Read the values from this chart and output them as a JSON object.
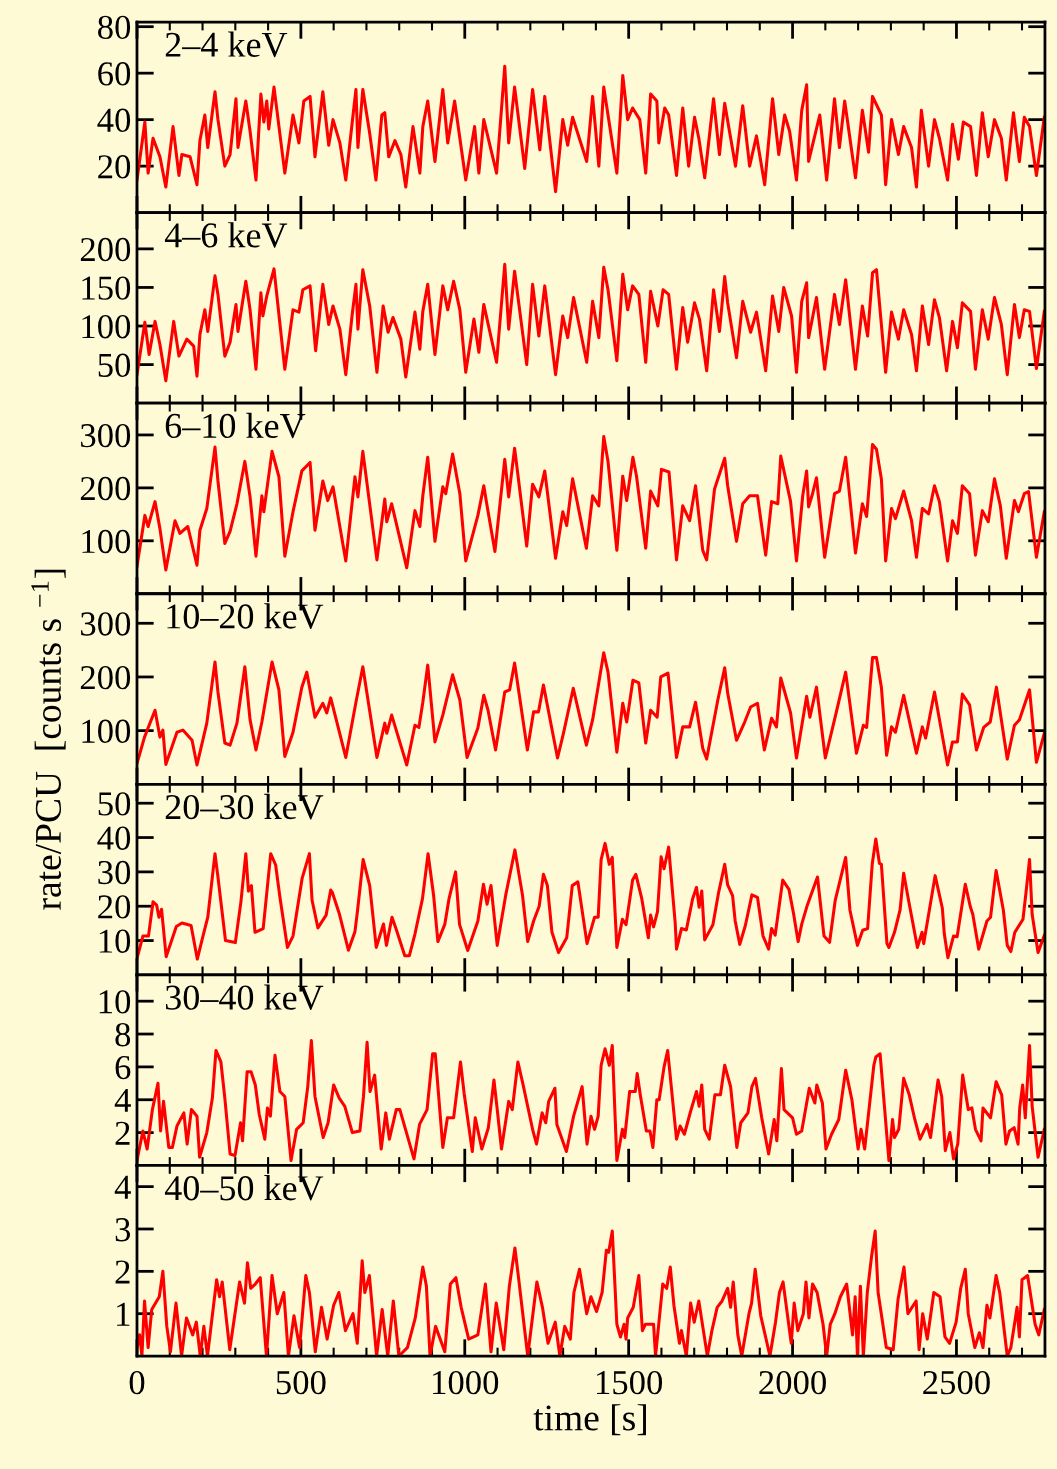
{
  "chart_data": [
    {
      "type": "line",
      "annotations": [
        "2–4 keV"
      ],
      "xlim": [
        0,
        2770
      ],
      "xticks": [
        0,
        500,
        1000,
        1500,
        2000,
        2500
      ],
      "ylim": [
        0,
        82
      ],
      "yticks": [
        20,
        40,
        60,
        80
      ],
      "tick_labels": "y",
      "x": [
        0,
        24,
        34,
        49,
        70,
        88,
        110,
        128,
        137,
        162,
        183,
        192,
        207,
        216,
        238,
        247,
        268,
        284,
        302,
        308,
        332,
        345,
        363,
        378,
        387,
        396,
        402,
        418,
        451,
        476,
        494,
        509,
        528,
        543,
        567,
        585,
        598,
        619,
        637,
        656,
        668,
        674,
        689,
        710,
        729,
        747,
        756,
        768,
        787,
        805,
        820,
        842,
        863,
        872,
        887,
        909,
        933,
        948,
        969,
        1003,
        1030,
        1043,
        1058,
        1097,
        1122,
        1134,
        1152,
        1183,
        1207,
        1229,
        1244,
        1277,
        1299,
        1314,
        1329,
        1372,
        1390,
        1409,
        1424,
        1437,
        1464,
        1482,
        1497,
        1512,
        1534,
        1552,
        1567,
        1586,
        1592,
        1610,
        1622,
        1646,
        1665,
        1683,
        1701,
        1714,
        1732,
        1759,
        1777,
        1793,
        1805,
        1826,
        1848,
        1869,
        1890,
        1915,
        1939,
        1958,
        1976,
        1991,
        2012,
        2028,
        2043,
        2049,
        2083,
        2104,
        2128,
        2143,
        2159,
        2192,
        2213,
        2232,
        2244,
        2271,
        2284,
        2302,
        2323,
        2339,
        2363,
        2378,
        2393,
        2415,
        2433,
        2448,
        2473,
        2488,
        2506,
        2521,
        2543,
        2561,
        2579,
        2597,
        2616,
        2637,
        2652,
        2674,
        2692,
        2707,
        2723,
        2744,
        2768
      ],
      "series": [
        {
          "color": "#ff0000",
          "values": [
            14,
            39,
            17,
            32,
            24,
            11,
            37,
            16,
            25,
            24,
            12,
            31,
            42,
            28,
            52,
            40,
            20,
            25,
            49,
            28,
            48,
            35,
            14,
            51,
            39,
            48,
            36,
            54,
            17,
            42,
            30,
            48,
            50,
            24,
            52,
            29,
            40,
            30,
            14,
            38,
            53,
            28,
            53,
            34,
            14,
            42,
            43,
            24,
            31,
            25,
            11,
            37,
            17,
            37,
            48,
            22,
            53,
            30,
            48,
            14,
            37,
            17,
            40,
            17,
            63,
            30,
            54,
            19,
            53,
            27,
            50,
            9,
            40,
            29,
            41,
            22,
            50,
            20,
            54,
            42,
            17,
            59,
            40,
            45,
            40,
            17,
            51,
            48,
            30,
            45,
            42,
            16,
            45,
            20,
            41,
            32,
            15,
            49,
            25,
            47,
            37,
            20,
            46,
            20,
            33,
            12,
            49,
            25,
            42,
            35,
            14,
            44,
            55,
            22,
            42,
            14,
            49,
            28,
            48,
            15,
            44,
            26,
            50,
            42,
            12,
            40,
            25,
            37,
            28,
            11,
            44,
            20,
            40,
            32,
            14,
            38,
            23,
            39,
            37,
            16,
            43,
            24,
            40,
            32,
            14,
            43,
            22,
            41,
            37,
            16,
            41
          ]
        }
      ]
    },
    {
      "type": "line",
      "annotations": [
        "4–6 keV"
      ],
      "xlim": [
        0,
        2770
      ],
      "xticks": [
        0,
        500,
        1000,
        1500,
        2000,
        2500
      ],
      "ylim": [
        0,
        247
      ],
      "yticks": [
        50,
        100,
        150,
        200
      ],
      "tick_labels": "y",
      "x": [
        0,
        24,
        37,
        55,
        70,
        88,
        112,
        128,
        152,
        173,
        183,
        192,
        207,
        216,
        238,
        247,
        268,
        284,
        302,
        308,
        332,
        345,
        363,
        378,
        384,
        396,
        418,
        451,
        476,
        494,
        506,
        528,
        545,
        567,
        585,
        598,
        619,
        637,
        656,
        668,
        674,
        689,
        710,
        732,
        751,
        766,
        781,
        805,
        820,
        848,
        863,
        872,
        887,
        909,
        933,
        948,
        966,
        985,
        1003,
        1028,
        1043,
        1058,
        1097,
        1122,
        1134,
        1152,
        1189,
        1207,
        1226,
        1244,
        1277,
        1299,
        1314,
        1332,
        1372,
        1390,
        1409,
        1424,
        1437,
        1464,
        1482,
        1497,
        1512,
        1531,
        1552,
        1567,
        1589,
        1605,
        1622,
        1646,
        1665,
        1680,
        1701,
        1716,
        1738,
        1759,
        1777,
        1793,
        1802,
        1829,
        1848,
        1872,
        1890,
        1918,
        1939,
        1958,
        1973,
        1997,
        2012,
        2028,
        2043,
        2049,
        2073,
        2098,
        2128,
        2143,
        2162,
        2192,
        2213,
        2229,
        2244,
        2256,
        2284,
        2302,
        2323,
        2339,
        2363,
        2378,
        2396,
        2415,
        2433,
        2448,
        2470,
        2488,
        2503,
        2518,
        2543,
        2558,
        2579,
        2597,
        2616,
        2637,
        2655,
        2677,
        2692,
        2707,
        2723,
        2744,
        2768
      ],
      "series": [
        {
          "color": "#ff0000",
          "values": [
            37,
            105,
            63,
            106,
            76,
            29,
            106,
            61,
            83,
            74,
            35,
            89,
            121,
            93,
            165,
            141,
            61,
            79,
            128,
            93,
            158,
            121,
            44,
            143,
            113,
            139,
            174,
            44,
            121,
            118,
            147,
            152,
            68,
            154,
            102,
            126,
            96,
            37,
            113,
            154,
            96,
            173,
            126,
            40,
            126,
            92,
            111,
            83,
            34,
            118,
            70,
            119,
            154,
            63,
            152,
            121,
            158,
            121,
            40,
            109,
            66,
            128,
            53,
            180,
            96,
            171,
            50,
            154,
            87,
            152,
            37,
            113,
            85,
            137,
            53,
            132,
            85,
            176,
            147,
            55,
            167,
            121,
            152,
            141,
            53,
            145,
            100,
            147,
            141,
            44,
            124,
            79,
            130,
            109,
            42,
            147,
            93,
            164,
            130,
            59,
            132,
            92,
            118,
            42,
            139,
            93,
            150,
            113,
            40,
            132,
            156,
            85,
            137,
            44,
            141,
            102,
            160,
            44,
            126,
            87,
            169,
            173,
            40,
            118,
            83,
            121,
            89,
            42,
            126,
            76,
            134,
            111,
            42,
            106,
            72,
            130,
            119,
            44,
            121,
            83,
            137,
            102,
            37,
            128,
            85,
            121,
            119,
            45,
            119
          ]
        }
      ]
    },
    {
      "type": "line",
      "annotations": [
        "6–10 keV"
      ],
      "xlim": [
        0,
        2770
      ],
      "xticks": [
        0,
        500,
        1000,
        1500,
        2000,
        2500
      ],
      "ylim": [
        0,
        360
      ],
      "yticks": [
        100,
        200,
        300
      ],
      "tick_labels": "y",
      "x": [
        0,
        24,
        34,
        55,
        70,
        88,
        116,
        131,
        155,
        183,
        192,
        213,
        238,
        247,
        268,
        284,
        305,
        329,
        345,
        363,
        381,
        387,
        412,
        433,
        451,
        476,
        503,
        528,
        543,
        567,
        582,
        598,
        637,
        665,
        674,
        689,
        732,
        756,
        762,
        777,
        823,
        848,
        863,
        872,
        887,
        909,
        933,
        942,
        963,
        985,
        1003,
        1040,
        1058,
        1067,
        1092,
        1122,
        1134,
        1152,
        1189,
        1207,
        1226,
        1244,
        1277,
        1299,
        1311,
        1329,
        1371,
        1390,
        1409,
        1424,
        1437,
        1464,
        1482,
        1494,
        1513,
        1524,
        1552,
        1567,
        1589,
        1600,
        1623,
        1646,
        1665,
        1686,
        1704,
        1726,
        1738,
        1762,
        1793,
        1802,
        1829,
        1848,
        1869,
        1893,
        1918,
        1936,
        1955,
        1964,
        1994,
        2012,
        2031,
        2043,
        2049,
        2061,
        2073,
        2098,
        2128,
        2143,
        2162,
        2192,
        2213,
        2226,
        2244,
        2256,
        2271,
        2284,
        2302,
        2314,
        2339,
        2363,
        2378,
        2396,
        2415,
        2433,
        2448,
        2473,
        2488,
        2503,
        2518,
        2540,
        2558,
        2579,
        2597,
        2616,
        2634,
        2652,
        2677,
        2689,
        2707,
        2720,
        2744,
        2768
      ],
      "series": [
        {
          "color": "#ff0000",
          "values": [
            52,
            148,
            127,
            174,
            123,
            45,
            138,
            114,
            127,
            54,
            120,
            161,
            277,
            213,
            95,
            118,
            170,
            250,
            183,
            71,
            185,
            155,
            269,
            221,
            71,
            155,
            232,
            248,
            120,
            213,
            176,
            202,
            62,
            221,
            183,
            269,
            64,
            179,
            136,
            170,
            49,
            157,
            127,
            185,
            258,
            99,
            202,
            189,
            264,
            189,
            62,
            148,
            204,
            170,
            80,
            254,
            183,
            275,
            90,
            207,
            183,
            232,
            67,
            155,
            129,
            217,
            86,
            185,
            166,
            297,
            250,
            82,
            222,
            176,
            258,
            222,
            86,
            194,
            166,
            235,
            230,
            64,
            166,
            138,
            204,
            82,
            64,
            198,
            256,
            204,
            99,
            170,
            185,
            185,
            73,
            174,
            170,
            260,
            174,
            62,
            185,
            232,
            164,
            189,
            219,
            69,
            189,
            194,
            258,
            77,
            170,
            146,
            282,
            273,
            217,
            62,
            161,
            142,
            194,
            138,
            69,
            161,
            151,
            204,
            174,
            62,
            138,
            114,
            204,
            189,
            73,
            157,
            136,
            217,
            166,
            67,
            176,
            155,
            189,
            193,
            69,
            155
          ]
        }
      ]
    },
    {
      "type": "line",
      "annotations": [
        "10–20 keV"
      ],
      "ylabel": "rate/PCU  [counts s $^{−1}$]",
      "xlim": [
        0,
        2770
      ],
      "xticks": [
        0,
        500,
        1000,
        1500,
        2000,
        2500
      ],
      "ylim": [
        0,
        355
      ],
      "yticks": [
        100,
        200,
        300
      ],
      "tick_labels": "y",
      "x": [
        0,
        23,
        55,
        70,
        79,
        88,
        122,
        140,
        168,
        183,
        213,
        238,
        247,
        268,
        284,
        305,
        329,
        345,
        363,
        381,
        412,
        433,
        451,
        476,
        503,
        518,
        543,
        567,
        579,
        591,
        637,
        668,
        689,
        732,
        756,
        762,
        777,
        823,
        848,
        860,
        872,
        887,
        909,
        933,
        963,
        985,
        1007,
        1040,
        1058,
        1071,
        1094,
        1122,
        1137,
        1152,
        1191,
        1210,
        1225,
        1240,
        1283,
        1301,
        1331,
        1371,
        1390,
        1424,
        1437,
        1464,
        1482,
        1494,
        1513,
        1531,
        1552,
        1567,
        1587,
        1598,
        1620,
        1646,
        1665,
        1686,
        1704,
        1726,
        1738,
        1772,
        1793,
        1802,
        1829,
        1854,
        1872,
        1893,
        1914,
        1936,
        1951,
        1964,
        1994,
        2012,
        2031,
        2043,
        2053,
        2073,
        2100,
        2133,
        2162,
        2195,
        2216,
        2226,
        2244,
        2256,
        2271,
        2287,
        2302,
        2314,
        2339,
        2378,
        2396,
        2406,
        2433,
        2473,
        2488,
        2503,
        2518,
        2540,
        2561,
        2583,
        2603,
        2622,
        2655,
        2677,
        2692,
        2723,
        2744,
        2768
      ],
      "series": [
        {
          "color": "#ff0000",
          "values": [
            39,
            88,
            138,
            88,
            101,
            37,
            97,
            101,
            82,
            36,
            114,
            228,
            172,
            77,
            73,
            114,
            219,
            120,
            64,
            116,
            228,
            176,
            52,
            97,
            181,
            209,
            125,
            151,
            133,
            161,
            50,
            153,
            219,
            50,
            114,
            95,
            129,
            36,
            110,
            106,
            153,
            222,
            79,
            129,
            204,
            157,
            50,
            105,
            166,
            138,
            64,
            172,
            176,
            226,
            64,
            135,
            135,
            185,
            49,
            95,
            179,
            73,
            120,
            245,
            209,
            60,
            151,
            116,
            194,
            189,
            77,
            138,
            125,
            200,
            207,
            50,
            107,
            107,
            153,
            67,
            47,
            157,
            217,
            170,
            82,
            116,
            144,
            151,
            64,
            123,
            107,
            198,
            133,
            49,
            120,
            164,
            125,
            181,
            49,
            133,
            209,
            58,
            110,
            106,
            236,
            236,
            181,
            54,
            107,
            97,
            166,
            58,
            107,
            86,
            172,
            36,
            79,
            79,
            168,
            148,
            64,
            106,
            116,
            181,
            47,
            110,
            120,
            176,
            41,
            95
          ]
        }
      ]
    },
    {
      "type": "line",
      "annotations": [
        "20–30 keV"
      ],
      "xlim": [
        0,
        2770
      ],
      "xticks": [
        0,
        500,
        1000,
        1500,
        2000,
        2500
      ],
      "ylim": [
        0,
        55.5
      ],
      "yticks": [
        10,
        20,
        30,
        40,
        50
      ],
      "tick_labels": "y",
      "x": [
        0,
        18,
        35,
        49,
        60,
        67,
        75,
        89,
        120,
        137,
        165,
        184,
        199,
        216,
        238,
        247,
        270,
        300,
        317,
        332,
        340,
        349,
        360,
        385,
        408,
        423,
        436,
        459,
        476,
        504,
        526,
        534,
        552,
        577,
        591,
        596,
        617,
        645,
        665,
        673,
        690,
        710,
        730,
        752,
        761,
        778,
        790,
        817,
        831,
        848,
        871,
        888,
        905,
        918,
        939,
        952,
        972,
        984,
        1009,
        1040,
        1057,
        1068,
        1080,
        1099,
        1125,
        1153,
        1176,
        1192,
        1210,
        1227,
        1240,
        1252,
        1266,
        1286,
        1311,
        1328,
        1345,
        1373,
        1396,
        1407,
        1416,
        1428,
        1441,
        1450,
        1464,
        1481,
        1492,
        1512,
        1522,
        1540,
        1560,
        1567,
        1576,
        1588,
        1599,
        1608,
        1622,
        1642,
        1646,
        1661,
        1676,
        1695,
        1707,
        1715,
        1723,
        1732,
        1757,
        1774,
        1793,
        1802,
        1817,
        1825,
        1839,
        1856,
        1876,
        1893,
        1910,
        1927,
        1936,
        1947,
        1970,
        1989,
        2003,
        2017,
        2028,
        2045,
        2076,
        2096,
        2113,
        2130,
        2162,
        2175,
        2198,
        2214,
        2229,
        2243,
        2254,
        2265,
        2271,
        2288,
        2294,
        2311,
        2328,
        2339,
        2353,
        2381,
        2395,
        2400,
        2435,
        2457,
        2463,
        2474,
        2491,
        2502,
        2527,
        2542,
        2550,
        2568,
        2593,
        2604,
        2621,
        2643,
        2655,
        2666,
        2678,
        2703,
        2712,
        2723,
        2731,
        2749,
        2768
      ],
      "series": [
        {
          "color": "#ff0000",
          "values": [
            4.8,
            11.3,
            11.3,
            21.3,
            20.3,
            16.8,
            19.1,
            5.3,
            14.1,
            15.1,
            14.4,
            4.6,
            10.4,
            16.8,
            35.3,
            28.5,
            10.0,
            9.4,
            21.2,
            35.3,
            24.4,
            26.0,
            12.4,
            13.5,
            35.3,
            32.0,
            22.7,
            8.0,
            11.3,
            28.2,
            35.3,
            21.8,
            13.7,
            17.4,
            24.7,
            24.0,
            17.9,
            7.2,
            12.6,
            18.9,
            33.6,
            26.0,
            8.0,
            14.8,
            8.6,
            16.8,
            13.5,
            5.6,
            5.6,
            11.9,
            22.2,
            35.3,
            23.1,
            9.7,
            14.7,
            22.2,
            30.0,
            14.7,
            7.1,
            15.7,
            26.4,
            20.6,
            26.0,
            8.6,
            23.3,
            36.4,
            23.3,
            9.7,
            15.7,
            20.0,
            29.3,
            26.0,
            12.4,
            6.5,
            10.8,
            26.0,
            27.1,
            9.1,
            16.8,
            16.8,
            33.6,
            38.3,
            32.2,
            34.2,
            8.0,
            16.2,
            14.6,
            27.6,
            29.3,
            22.2,
            10.8,
            17.4,
            14.0,
            18.4,
            34.4,
            30.9,
            37.2,
            15.1,
            7.5,
            13.5,
            13.1,
            22.1,
            25.5,
            19.7,
            24.4,
            10.2,
            14.6,
            23.8,
            32.2,
            26.2,
            23.1,
            15.7,
            8.9,
            14.4,
            23.3,
            22.6,
            11.3,
            7.5,
            13.5,
            11.6,
            27.6,
            24.9,
            17.9,
            9.7,
            14.8,
            20.3,
            28.5,
            11.3,
            9.5,
            21.6,
            34.2,
            18.9,
            8.6,
            13.0,
            13.5,
            32.2,
            39.6,
            32.5,
            32.2,
            9.1,
            8.0,
            12.4,
            18.9,
            29.6,
            22.2,
            8.0,
            12.4,
            9.1,
            28.9,
            19.4,
            11.9,
            5.0,
            11.3,
            11.1,
            26.4,
            20.0,
            17.6,
            7.5,
            15.7,
            16.8,
            30.4,
            18.9,
            8.6,
            6.8,
            12.4,
            16.2,
            23.8,
            33.6,
            17.6,
            6.5,
            11.5
          ]
        }
      ]
    },
    {
      "type": "line",
      "annotations": [
        "30–40 keV"
      ],
      "xlim": [
        0,
        2770
      ],
      "xticks": [
        0,
        500,
        1000,
        1500,
        2000,
        2500
      ],
      "ylim": [
        0,
        11.6
      ],
      "yticks": [
        2,
        4,
        6,
        8,
        10
      ],
      "tick_labels": "y",
      "x": [
        0,
        18,
        31,
        47,
        64,
        72,
        81,
        97,
        108,
        122,
        143,
        153,
        166,
        183,
        191,
        213,
        230,
        241,
        256,
        268,
        284,
        299,
        316,
        322,
        336,
        348,
        361,
        373,
        390,
        398,
        407,
        421,
        436,
        451,
        470,
        487,
        507,
        521,
        532,
        543,
        568,
        583,
        600,
        617,
        634,
        657,
        680,
        691,
        702,
        711,
        725,
        745,
        759,
        770,
        791,
        802,
        845,
        862,
        885,
        902,
        910,
        933,
        947,
        966,
        987,
        998,
        1023,
        1032,
        1052,
        1072,
        1089,
        1098,
        1112,
        1134,
        1145,
        1162,
        1177,
        1208,
        1219,
        1236,
        1247,
        1256,
        1275,
        1281,
        1310,
        1332,
        1358,
        1373,
        1385,
        1396,
        1407,
        1416,
        1428,
        1441,
        1450,
        1464,
        1481,
        1488,
        1503,
        1520,
        1526,
        1537,
        1554,
        1565,
        1574,
        1586,
        1593,
        1608,
        1619,
        1646,
        1657,
        1670,
        1689,
        1707,
        1715,
        1723,
        1732,
        1746,
        1763,
        1780,
        1793,
        1811,
        1830,
        1842,
        1864,
        1876,
        1887,
        1906,
        1927,
        1944,
        1952,
        1966,
        1974,
        2000,
        2012,
        2028,
        2051,
        2068,
        2074,
        2091,
        2102,
        2119,
        2141,
        2162,
        2181,
        2200,
        2209,
        2220,
        2248,
        2254,
        2267,
        2294,
        2305,
        2311,
        2324,
        2339,
        2356,
        2373,
        2389,
        2410,
        2421,
        2444,
        2455,
        2466,
        2480,
        2491,
        2504,
        2519,
        2536,
        2547,
        2558,
        2575,
        2581,
        2604,
        2621,
        2638,
        2651,
        2662,
        2676,
        2688,
        2693,
        2702,
        2710,
        2723,
        2731,
        2749,
        2768
      ],
      "series": [
        {
          "color": "#ff0000",
          "values": [
            0.3,
            2.1,
            1.0,
            3.4,
            5.0,
            2.1,
            3.9,
            1.1,
            1.1,
            2.4,
            3.2,
            1.3,
            3.4,
            3.0,
            0.5,
            2.0,
            4.1,
            7.0,
            6.3,
            4.1,
            0.7,
            0.6,
            2.6,
            1.5,
            5.7,
            5.7,
            4.9,
            3.1,
            1.6,
            3.5,
            3.0,
            6.7,
            4.5,
            4.2,
            0.3,
            2.2,
            2.6,
            4.8,
            7.6,
            4.2,
            1.7,
            2.6,
            4.9,
            4.1,
            3.6,
            2.0,
            2.1,
            4.2,
            7.5,
            4.5,
            5.5,
            1.0,
            3.2,
            1.6,
            3.4,
            3.4,
            0.4,
            2.5,
            3.4,
            6.8,
            6.8,
            1.1,
            2.9,
            2.9,
            6.3,
            4.4,
            0.85,
            2.9,
            1.0,
            2.3,
            5.2,
            3.6,
            1.0,
            3.9,
            3.4,
            6.3,
            5.0,
            2.1,
            1.3,
            3.2,
            2.6,
            3.9,
            4.7,
            2.5,
            0.85,
            3.0,
            4.8,
            1.3,
            3.0,
            2.2,
            3.0,
            6.1,
            7.1,
            6.1,
            7.3,
            0.3,
            2.2,
            1.7,
            4.5,
            4.5,
            5.6,
            4.1,
            2.1,
            2.1,
            1.1,
            4.0,
            4.0,
            6.0,
            7.0,
            1.6,
            2.4,
            1.9,
            3.3,
            4.5,
            3.6,
            4.9,
            2.2,
            1.6,
            4.3,
            4.3,
            6.1,
            4.8,
            1.1,
            2.6,
            3.2,
            4.8,
            5.3,
            2.9,
            0.7,
            2.8,
            1.5,
            5.9,
            3.4,
            2.9,
            1.9,
            2.1,
            4.7,
            3.8,
            4.9,
            3.8,
            1.0,
            1.9,
            2.8,
            5.8,
            4.0,
            1.0,
            2.2,
            1.0,
            6.1,
            6.6,
            6.8,
            0.3,
            2.8,
            1.7,
            2.2,
            5.3,
            4.3,
            2.8,
            1.6,
            2.5,
            1.7,
            5.2,
            4.2,
            0.9,
            2.0,
            0.4,
            1.3,
            5.5,
            3.4,
            3.5,
            2.2,
            1.5,
            3.5,
            2.9,
            5.1,
            4.3,
            1.3,
            2.1,
            2.3,
            1.3,
            3.5,
            4.9,
            2.9,
            7.3,
            3.6,
            0.5,
            2.2
          ]
        }
      ]
    },
    {
      "type": "line",
      "annotations": [
        "40–50 keV"
      ],
      "xlabel": "time [s]",
      "xlim": [
        0,
        2770
      ],
      "xticks": [
        0,
        500,
        1000,
        1500,
        2000,
        2500
      ],
      "ylim": [
        0,
        4.5
      ],
      "yticks": [
        1,
        2,
        3,
        4
      ],
      "x": [
        0,
        8,
        15,
        23,
        34,
        45,
        68,
        79,
        91,
        102,
        119,
        136,
        151,
        170,
        181,
        193,
        204,
        215,
        243,
        252,
        260,
        283,
        313,
        328,
        337,
        347,
        361,
        376,
        395,
        412,
        428,
        448,
        462,
        479,
        496,
        515,
        526,
        544,
        563,
        580,
        600,
        616,
        636,
        659,
        672,
        687,
        695,
        709,
        731,
        748,
        765,
        782,
        799,
        825,
        849,
        872,
        883,
        894,
        911,
        939,
        956,
        973,
        989,
        1012,
        1040,
        1063,
        1080,
        1096,
        1119,
        1136,
        1153,
        1164,
        1192,
        1220,
        1237,
        1254,
        1276,
        1290,
        1305,
        1322,
        1333,
        1350,
        1372,
        1385,
        1402,
        1419,
        1432,
        1439,
        1450,
        1464,
        1475,
        1486,
        1492,
        1497,
        1514,
        1531,
        1542,
        1551,
        1576,
        1582,
        1604,
        1616,
        1627,
        1638,
        1655,
        1661,
        1676,
        1689,
        1700,
        1714,
        1728,
        1740,
        1754,
        1770,
        1785,
        1802,
        1811,
        1819,
        1833,
        1845,
        1867,
        1875,
        1886,
        1903,
        1931,
        1948,
        1960,
        1971,
        1996,
        2005,
        2016,
        2033,
        2041,
        2050,
        2061,
        2075,
        2093,
        2104,
        2115,
        2129,
        2146,
        2165,
        2183,
        2191,
        2198,
        2207,
        2216,
        2228,
        2241,
        2252,
        2261,
        2286,
        2307,
        2322,
        2340,
        2352,
        2377,
        2386,
        2397,
        2411,
        2431,
        2450,
        2465,
        2479,
        2499,
        2513,
        2527,
        2536,
        2556,
        2570,
        2581,
        2593,
        2602,
        2621,
        2632,
        2655,
        2666,
        2685,
        2692,
        2700,
        2717,
        2740,
        2751,
        2768
      ],
      "series": [
        {
          "color": "#ff0000",
          "values": [
            0.2,
            0.5,
            0,
            1.3,
            0.2,
            1.1,
            1.4,
            2.0,
            0.7,
            0.1,
            1.25,
            0,
            0.9,
            0.5,
            0.8,
            0,
            0.7,
            0,
            1.8,
            1.4,
            1.75,
            0.15,
            1.75,
            1.25,
            2.2,
            1.6,
            1.7,
            1.85,
            0,
            1.9,
            1.0,
            1.5,
            0,
            0.95,
            0.2,
            1.9,
            1.5,
            0.1,
            1.15,
            0.4,
            1.2,
            1.5,
            0.6,
            1.0,
            0.3,
            2.25,
            1.5,
            1.9,
            0,
            1.1,
            0,
            1.3,
            0,
            0.2,
            0.9,
            2.1,
            1.65,
            0,
            0.7,
            0.1,
            1.7,
            1.85,
            1.15,
            0.4,
            0.5,
            1.7,
            0.1,
            1.25,
            0.15,
            1.65,
            2.55,
            1.85,
            0,
            1.75,
            1.15,
            0.3,
            0.8,
            0,
            0.7,
            0.4,
            1.5,
            2.05,
            1.0,
            1.4,
            1.05,
            1.5,
            2.5,
            2.45,
            2.95,
            0.75,
            0.45,
            0.75,
            0.4,
            0.9,
            1.15,
            1.9,
            0.6,
            0.75,
            0.75,
            0,
            1.7,
            1.6,
            2.1,
            1.2,
            0.3,
            0.6,
            0,
            1.25,
            0.8,
            1.3,
            0.6,
            0,
            0.6,
            1.15,
            1.3,
            1.6,
            1.15,
            1.75,
            0.5,
            0,
            1.0,
            1.25,
            2.05,
            0.95,
            0,
            0.8,
            1.5,
            1.75,
            0.3,
            1.25,
            0.6,
            1.0,
            1.75,
            0.9,
            1.7,
            1.5,
            0.75,
            0,
            0.75,
            1.0,
            1.4,
            1.7,
            0.5,
            1.4,
            0,
            1.65,
            0,
            1.5,
            2.35,
            2.95,
            1.5,
            0.2,
            0.15,
            1.35,
            2.1,
            1.0,
            1.3,
            0.15,
            1.0,
            0.4,
            1.5,
            1.4,
            0.45,
            0.3,
            0.8,
            1.6,
            2.05,
            1.0,
            0.2,
            0.55,
            0.2,
            1.2,
            0.9,
            1.9,
            1.5,
            0,
            0.2,
            1.15,
            0.45,
            1.8,
            1.9,
            0.75,
            0.5,
            1.1
          ]
        }
      ]
    }
  ]
}
